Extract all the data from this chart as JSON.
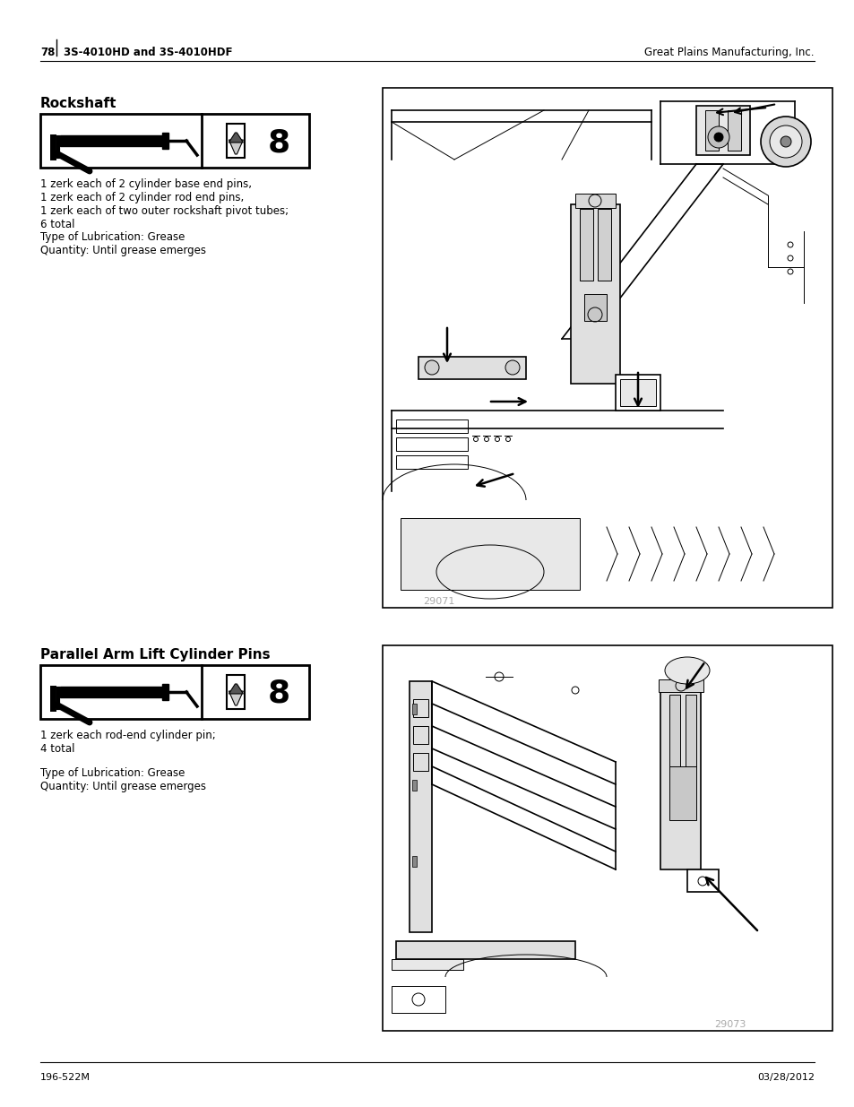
{
  "page_number": "78",
  "model": "3S-4010HD and 3S-4010HDF",
  "company": "Great Plains Manufacturing, Inc.",
  "footer_left": "196-522M",
  "footer_right": "03/28/2012",
  "section1_title": "Rockshaft",
  "section1_icon_count": "8",
  "section1_desc_line1": "1 zerk each of 2 cylinder base end pins,",
  "section1_desc_line2": "1 zerk each of 2 cylinder rod end pins,",
  "section1_desc_line3": "1 zerk each of two outer rockshaft pivot tubes;",
  "section1_desc_line4": "6 total",
  "section1_lube_type": "Type of Lubrication: Grease",
  "section1_quantity": "Quantity: Until grease emerges",
  "section1_img_label": "29071",
  "section2_title": "Parallel Arm Lift Cylinder Pins",
  "section2_icon_count": "8",
  "section2_desc_line1": "1 zerk each rod-end cylinder pin;",
  "section2_desc_line2": "4 total",
  "section2_lube_type": "Type of Lubrication: Grease",
  "section2_quantity": "Quantity: Until grease emerges",
  "section2_img_label": "29073",
  "bg_color": "#ffffff",
  "text_color": "#000000",
  "draw_color": "#000000",
  "light_line": "#888888",
  "img_bg": "#ffffff"
}
